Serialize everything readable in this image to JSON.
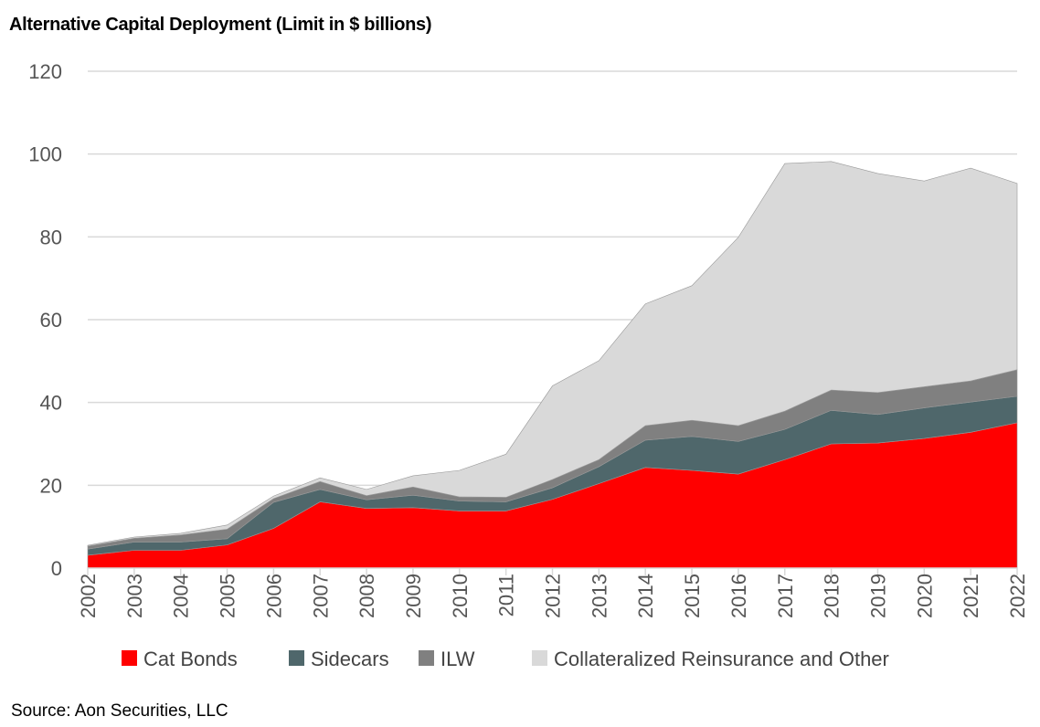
{
  "chart_data": {
    "type": "area",
    "stacked": true,
    "title": "Alternative Capital Deployment (Limit in $ billions)",
    "source": "Source: Aon Securities, LLC",
    "xlabel": "",
    "ylabel": "",
    "ylim": [
      0,
      120
    ],
    "yticks": [
      "0",
      "20",
      "40",
      "60",
      "80",
      "100",
      "120"
    ],
    "grid": true,
    "legend_position": "bottom",
    "categories": [
      "2002",
      "2003",
      "2004",
      "2005",
      "2006",
      "2007",
      "2008",
      "2009",
      "2010",
      "2011",
      "2012",
      "2013",
      "2014",
      "2015",
      "2016",
      "2017",
      "2018",
      "2019",
      "2020",
      "2021",
      "2022"
    ],
    "series": [
      {
        "name": "Cat Bonds",
        "color": "#ff0000",
        "values": [
          3.1,
          4.3,
          4.3,
          5.6,
          9.6,
          16.0,
          14.4,
          14.6,
          13.8,
          13.8,
          16.6,
          20.4,
          24.3,
          23.6,
          22.7,
          26.2,
          30.0,
          30.2,
          31.3,
          32.8,
          35.1
        ]
      },
      {
        "name": "Sidecars",
        "color": "#4f676b",
        "values": [
          1.5,
          2.0,
          2.0,
          1.5,
          6.3,
          3.0,
          2.1,
          3.0,
          2.4,
          2.2,
          2.8,
          4.1,
          6.6,
          8.2,
          7.9,
          7.3,
          8.1,
          6.9,
          7.4,
          7.3,
          6.4
        ]
      },
      {
        "name": "ILW",
        "color": "#808080",
        "values": [
          0.7,
          0.9,
          1.7,
          2.3,
          0.9,
          1.9,
          1.0,
          2.0,
          1.0,
          1.1,
          2.0,
          1.7,
          3.5,
          3.9,
          3.8,
          4.4,
          4.9,
          5.3,
          5.1,
          5.1,
          6.4
        ]
      },
      {
        "name": "Collateralized Reinsurance and Other",
        "color": "#d9d9d9",
        "values": [
          0.2,
          0.3,
          0.4,
          1.0,
          0.6,
          0.9,
          1.5,
          2.7,
          6.4,
          10.4,
          22.6,
          23.9,
          29.4,
          32.5,
          45.5,
          59.8,
          55.2,
          52.9,
          49.7,
          51.4,
          45.0
        ]
      }
    ]
  }
}
